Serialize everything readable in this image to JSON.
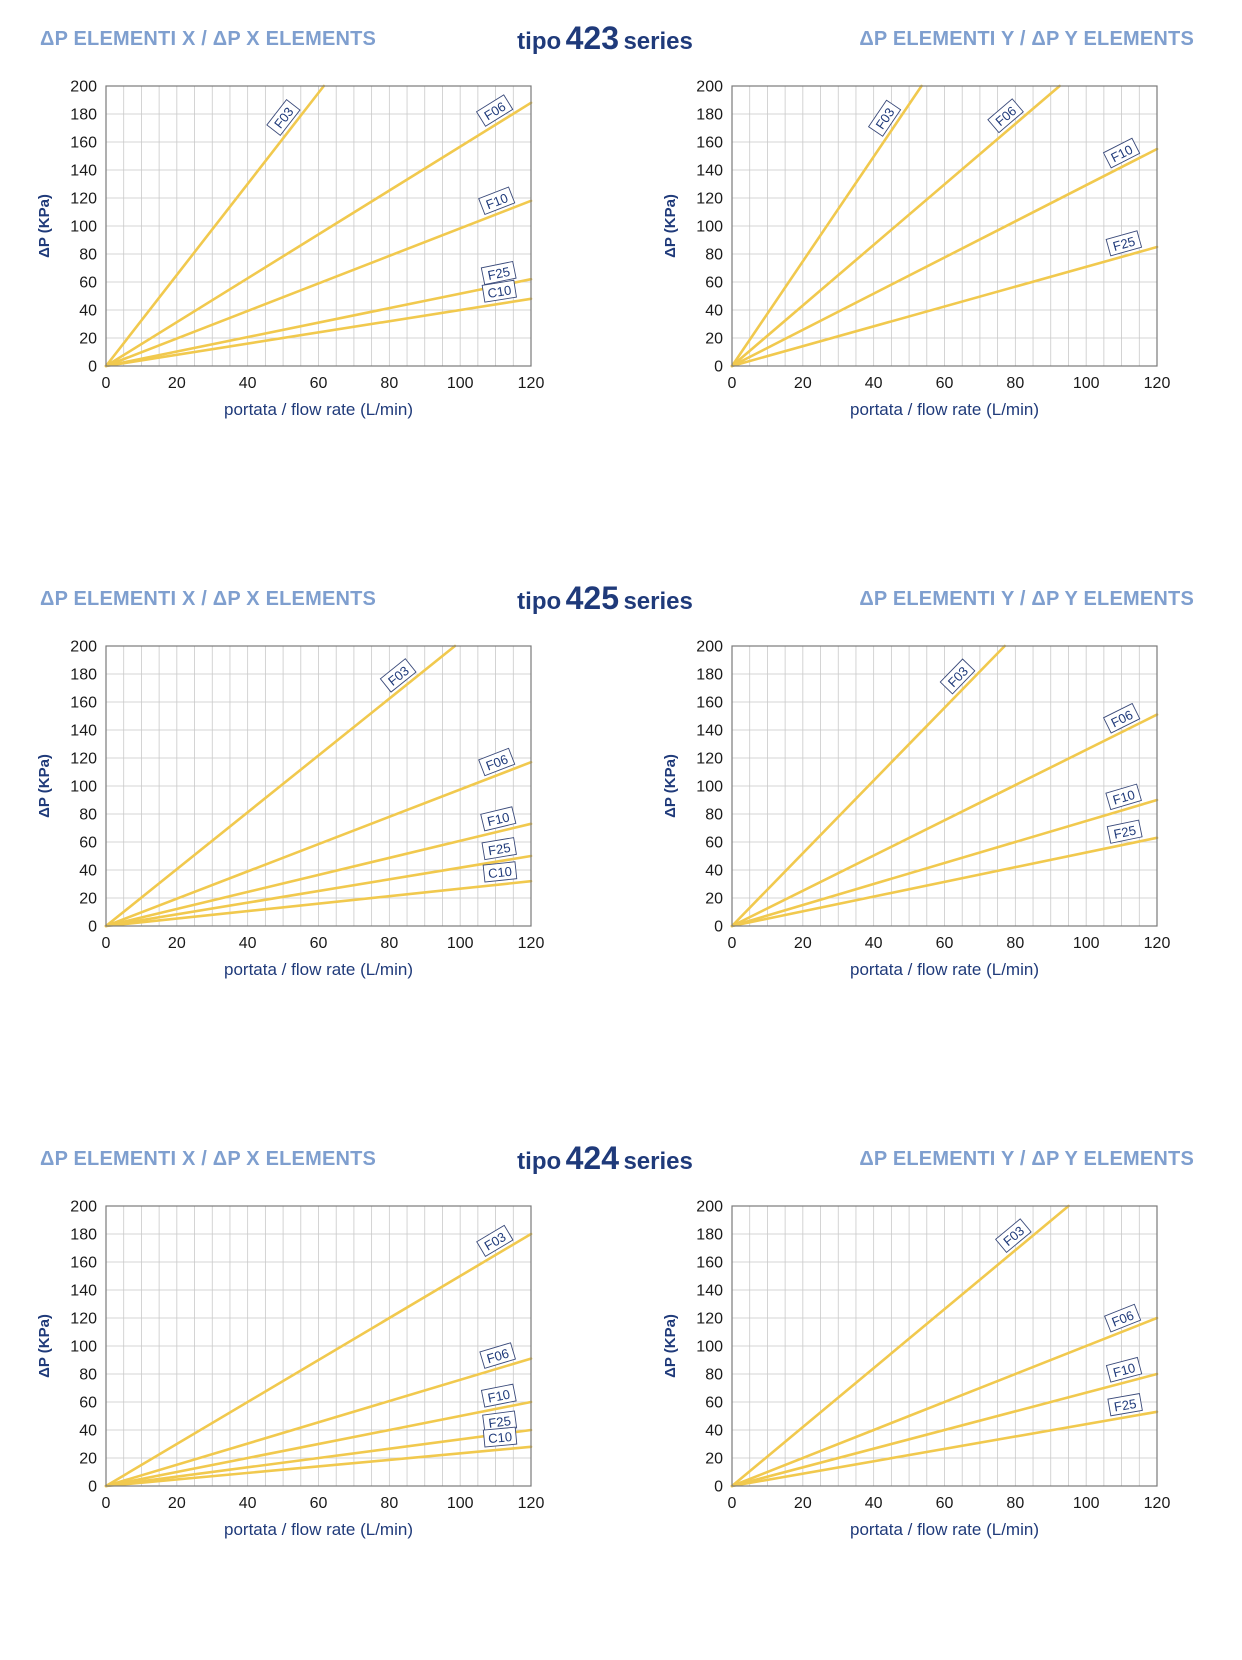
{
  "colors": {
    "line": "#f1c94e",
    "header_light": "#7f9fcf",
    "header_dark": "#1f3a7a",
    "grid": "#c9c9c9"
  },
  "sections": [
    {
      "title_prefix": "tipo",
      "series_number": "423",
      "title_suffix": "series",
      "header_x": "ΔP ELEMENTI X / ΔP X ELEMENTS",
      "header_y": "ΔP ELEMENTI Y / ΔP Y ELEMENTS"
    },
    {
      "title_prefix": "tipo",
      "series_number": "425",
      "title_suffix": "series",
      "header_x": "ΔP ELEMENTI X / ΔP X ELEMENTS",
      "header_y": "ΔP ELEMENTI Y / ΔP Y ELEMENTS"
    },
    {
      "title_prefix": "tipo",
      "series_number": "424",
      "title_suffix": "series",
      "header_x": "ΔP ELEMENTI X / ΔP X ELEMENTS",
      "header_y": "ΔP ELEMENTI Y / ΔP Y ELEMENTS"
    }
  ],
  "chart_data": [
    {
      "type": "line",
      "grid": true,
      "xlabel": "portata / flow rate (L/min)",
      "ylabel": "ΔP (KPa)",
      "xlim": [
        0,
        120
      ],
      "ylim": [
        0,
        200
      ],
      "xticks": [
        0,
        20,
        40,
        60,
        80,
        100,
        120
      ],
      "yticks": [
        0,
        20,
        40,
        60,
        80,
        100,
        120,
        140,
        160,
        180,
        200
      ],
      "series": [
        {
          "name": "F03",
          "x": [
            0,
            61.5
          ],
          "y": [
            0,
            200
          ]
        },
        {
          "name": "F06",
          "x": [
            0,
            120
          ],
          "y": [
            0,
            188
          ]
        },
        {
          "name": "F10",
          "x": [
            0,
            120
          ],
          "y": [
            0,
            118
          ]
        },
        {
          "name": "F25",
          "x": [
            0,
            120
          ],
          "y": [
            0,
            62
          ]
        },
        {
          "name": "C10",
          "x": [
            0,
            120
          ],
          "y": [
            0,
            48
          ]
        }
      ]
    },
    {
      "type": "line",
      "grid": true,
      "xlabel": "portata / flow rate (L/min)",
      "ylabel": "ΔP (KPa)",
      "xlim": [
        0,
        120
      ],
      "ylim": [
        0,
        200
      ],
      "xticks": [
        0,
        20,
        40,
        60,
        80,
        100,
        120
      ],
      "yticks": [
        0,
        20,
        40,
        60,
        80,
        100,
        120,
        140,
        160,
        180,
        200
      ],
      "series": [
        {
          "name": "F03",
          "x": [
            0,
            53.5
          ],
          "y": [
            0,
            200
          ]
        },
        {
          "name": "F06",
          "x": [
            0,
            92.5
          ],
          "y": [
            0,
            200
          ]
        },
        {
          "name": "F10",
          "x": [
            0,
            120
          ],
          "y": [
            0,
            155
          ]
        },
        {
          "name": "F25",
          "x": [
            0,
            120
          ],
          "y": [
            0,
            85
          ]
        }
      ]
    },
    {
      "type": "line",
      "grid": true,
      "xlabel": "portata / flow rate (L/min)",
      "ylabel": "ΔP (KPa)",
      "xlim": [
        0,
        120
      ],
      "ylim": [
        0,
        200
      ],
      "xticks": [
        0,
        20,
        40,
        60,
        80,
        100,
        120
      ],
      "yticks": [
        0,
        20,
        40,
        60,
        80,
        100,
        120,
        140,
        160,
        180,
        200
      ],
      "series": [
        {
          "name": "F03",
          "x": [
            0,
            98.5
          ],
          "y": [
            0,
            200
          ]
        },
        {
          "name": "F06",
          "x": [
            0,
            120
          ],
          "y": [
            0,
            117
          ]
        },
        {
          "name": "F10",
          "x": [
            0,
            120
          ],
          "y": [
            0,
            73
          ]
        },
        {
          "name": "F25",
          "x": [
            0,
            120
          ],
          "y": [
            0,
            50
          ]
        },
        {
          "name": "C10",
          "x": [
            0,
            120
          ],
          "y": [
            0,
            32
          ]
        }
      ]
    },
    {
      "type": "line",
      "grid": true,
      "xlabel": "portata / flow rate (L/min)",
      "ylabel": "ΔP (KPa)",
      "xlim": [
        0,
        120
      ],
      "ylim": [
        0,
        200
      ],
      "xticks": [
        0,
        20,
        40,
        60,
        80,
        100,
        120
      ],
      "yticks": [
        0,
        20,
        40,
        60,
        80,
        100,
        120,
        140,
        160,
        180,
        200
      ],
      "series": [
        {
          "name": "F03",
          "x": [
            0,
            77
          ],
          "y": [
            0,
            200
          ]
        },
        {
          "name": "F06",
          "x": [
            0,
            120
          ],
          "y": [
            0,
            151
          ]
        },
        {
          "name": "F10",
          "x": [
            0,
            120
          ],
          "y": [
            0,
            90
          ]
        },
        {
          "name": "F25",
          "x": [
            0,
            120
          ],
          "y": [
            0,
            63
          ]
        }
      ]
    },
    {
      "type": "line",
      "grid": true,
      "xlabel": "portata / flow rate (L/min)",
      "ylabel": "ΔP (KPa)",
      "xlim": [
        0,
        120
      ],
      "ylim": [
        0,
        200
      ],
      "xticks": [
        0,
        20,
        40,
        60,
        80,
        100,
        120
      ],
      "yticks": [
        0,
        20,
        40,
        60,
        80,
        100,
        120,
        140,
        160,
        180,
        200
      ],
      "series": [
        {
          "name": "F03",
          "x": [
            0,
            120
          ],
          "y": [
            0,
            180
          ]
        },
        {
          "name": "F06",
          "x": [
            0,
            120
          ],
          "y": [
            0,
            91
          ]
        },
        {
          "name": "F10",
          "x": [
            0,
            120
          ],
          "y": [
            0,
            60
          ]
        },
        {
          "name": "F25",
          "x": [
            0,
            120
          ],
          "y": [
            0,
            40
          ]
        },
        {
          "name": "C10",
          "x": [
            0,
            120
          ],
          "y": [
            0,
            28
          ]
        }
      ]
    },
    {
      "type": "line",
      "grid": true,
      "xlabel": "portata / flow rate (L/min)",
      "ylabel": "ΔP (KPa)",
      "xlim": [
        0,
        120
      ],
      "ylim": [
        0,
        200
      ],
      "xticks": [
        0,
        20,
        40,
        60,
        80,
        100,
        120
      ],
      "yticks": [
        0,
        20,
        40,
        60,
        80,
        100,
        120,
        140,
        160,
        180,
        200
      ],
      "series": [
        {
          "name": "F03",
          "x": [
            0,
            95
          ],
          "y": [
            0,
            200
          ]
        },
        {
          "name": "F06",
          "x": [
            0,
            120
          ],
          "y": [
            0,
            120
          ]
        },
        {
          "name": "F10",
          "x": [
            0,
            120
          ],
          "y": [
            0,
            80
          ]
        },
        {
          "name": "F25",
          "x": [
            0,
            120
          ],
          "y": [
            0,
            53
          ]
        }
      ]
    }
  ]
}
